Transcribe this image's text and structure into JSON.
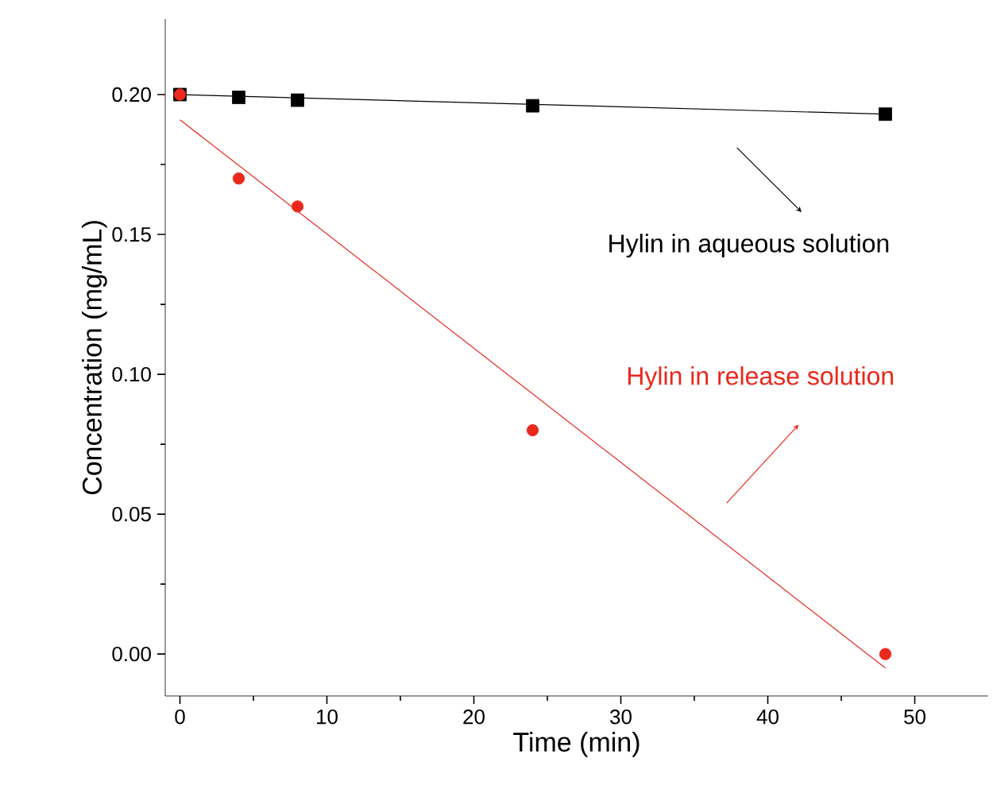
{
  "chart_data": {
    "type": "scatter",
    "xlabel": "Time  (min)",
    "ylabel": "Concentration (mg/mL)",
    "xlim": [
      -1,
      55
    ],
    "ylim": [
      -0.015,
      0.227
    ],
    "xticks": [
      0,
      10,
      20,
      30,
      40,
      50
    ],
    "yticks": [
      {
        "value": 0,
        "label": "0.00"
      },
      {
        "value": 0.05,
        "label": "0.05"
      },
      {
        "value": 0.1,
        "label": "0.10"
      },
      {
        "value": 0.15,
        "label": "0.15"
      },
      {
        "value": 0.2,
        "label": "0.20"
      }
    ],
    "grid": false,
    "series": [
      {
        "color": "#000000",
        "marker": "square",
        "x": [
          0,
          4,
          8,
          24,
          48
        ],
        "values": [
          0.2,
          0.199,
          0.198,
          0.196,
          0.193
        ]
      },
      {
        "color": "#e8291c",
        "marker": "circle",
        "x": [
          0,
          4,
          8,
          24,
          48
        ],
        "values": [
          0.2,
          0.17,
          0.16,
          0.08,
          0.0
        ]
      },
      {
        "type": "line",
        "color": "#000000",
        "x": [
          0,
          48
        ],
        "values": [
          0.2,
          0.193
        ]
      },
      {
        "type": "line",
        "color": "#e8291c",
        "x": [
          0,
          48
        ],
        "values": [
          0.191,
          -0.005
        ]
      }
    ],
    "annotations": [
      "Hylin in aqueous solution",
      "Hylin in release solution"
    ]
  }
}
